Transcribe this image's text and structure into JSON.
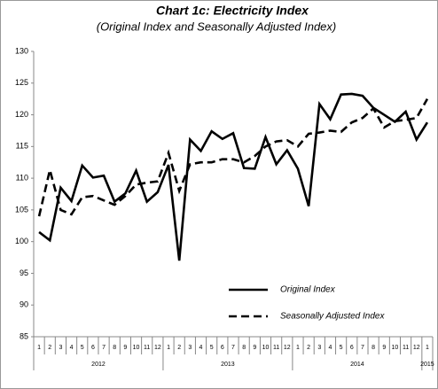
{
  "chart_data": {
    "type": "line",
    "title": "Chart 1c: Electricity Index",
    "subtitle": "(Original Index and Seasonally Adjusted Index)",
    "categories": [
      "1",
      "2",
      "3",
      "4",
      "5",
      "6",
      "7",
      "8",
      "9",
      "10",
      "11",
      "12",
      "1",
      "2",
      "3",
      "4",
      "5",
      "6",
      "7",
      "8",
      "9",
      "10",
      "11",
      "12",
      "1",
      "2",
      "3",
      "4",
      "5",
      "6",
      "7",
      "8",
      "9",
      "10",
      "11",
      "12",
      "1"
    ],
    "years": [
      "2012",
      "2013",
      "2014",
      "2015"
    ],
    "series": [
      {
        "name": "Original Index",
        "color": "#000000",
        "style": "solid",
        "values": [
          101.5,
          100.2,
          108.5,
          106.4,
          112,
          110.1,
          110.4,
          106.3,
          107.6,
          111.2,
          106.3,
          107.8,
          112.1,
          97,
          116.1,
          114.3,
          117.4,
          116.2,
          117.1,
          111.6,
          111.5,
          116.5,
          112.2,
          114.4,
          111.5,
          105.6,
          121.7,
          119.3,
          123.2,
          123.3,
          123,
          121.1,
          120,
          118.9,
          120.5,
          116.1,
          118.8
        ]
      },
      {
        "name": "Seasonally Adjusted Index",
        "color": "#000000",
        "style": "dashed",
        "values": [
          104,
          111.3,
          105,
          104.3,
          107,
          107.2,
          106.5,
          105.8,
          107.2,
          109,
          109.3,
          109.5,
          114,
          108,
          112.2,
          112.5,
          112.5,
          113,
          113,
          112.5,
          113.5,
          115,
          115.8,
          116,
          115,
          117,
          117.2,
          117.5,
          117.3,
          118.8,
          119.5,
          121,
          118,
          119,
          119.2,
          119.5,
          122.5
        ]
      }
    ],
    "ylim": [
      85,
      130
    ],
    "yticks": [
      85,
      90,
      95,
      100,
      105,
      110,
      115,
      120,
      125,
      130
    ],
    "legend": "lower right"
  }
}
